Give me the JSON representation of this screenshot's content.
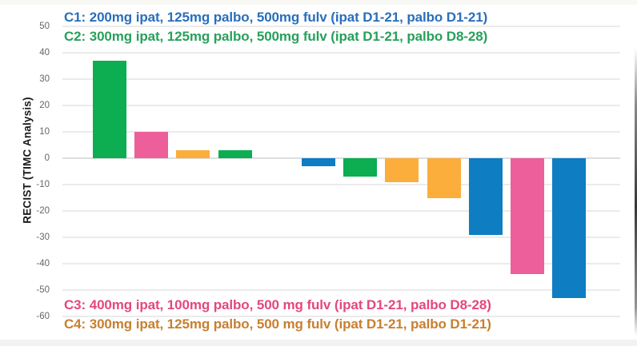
{
  "chart_data": {
    "type": "bar",
    "subtype": "waterfall",
    "title": "",
    "xlabel": "",
    "ylabel": "RECIST (TIMC Analysis)",
    "ylim": [
      -60,
      50
    ],
    "yticks": [
      50,
      40,
      30,
      20,
      10,
      0,
      -10,
      -20,
      -30,
      -40,
      -50,
      -60
    ],
    "grid": true,
    "bar_colors": {
      "C1": "#0E7DC2",
      "C2": "#0DAD51",
      "C3": "#EC5F9B",
      "C4": "#FBAE3C"
    },
    "bars": [
      {
        "cohort": "C2",
        "value": 37
      },
      {
        "cohort": "C3",
        "value": 10
      },
      {
        "cohort": "C4",
        "value": 3
      },
      {
        "cohort": "C2",
        "value": 3
      },
      {
        "cohort": "",
        "value": 0
      },
      {
        "cohort": "C1",
        "value": -3
      },
      {
        "cohort": "C2",
        "value": -7
      },
      {
        "cohort": "C4",
        "value": -9
      },
      {
        "cohort": "C4",
        "value": -15
      },
      {
        "cohort": "C1",
        "value": -29
      },
      {
        "cohort": "C3",
        "value": -44
      },
      {
        "cohort": "C1",
        "value": -53
      }
    ],
    "legend_top": [
      {
        "id": "C1",
        "label": "C1: 200mg ipat, 125mg palbo, 500mg fulv (ipat D1-21, palbo D1-21)",
        "color": "#2A6EBB"
      },
      {
        "id": "C2",
        "label": "C2: 300mg ipat, 125mg palbo, 500mg fulv (ipat D1-21, palbo D8-28)",
        "color": "#27A05B"
      }
    ],
    "legend_bottom": [
      {
        "id": "C3",
        "label": "C3: 400mg ipat, 100mg palbo, 500 mg fulv (ipat D1-21, palbo D8-28)",
        "color": "#E4477F"
      },
      {
        "id": "C4",
        "label": "C4: 300mg ipat, 125mg palbo, 500 mg fulv (ipat D1-21, palbo D1-21)",
        "color": "#C77F2F"
      }
    ]
  }
}
